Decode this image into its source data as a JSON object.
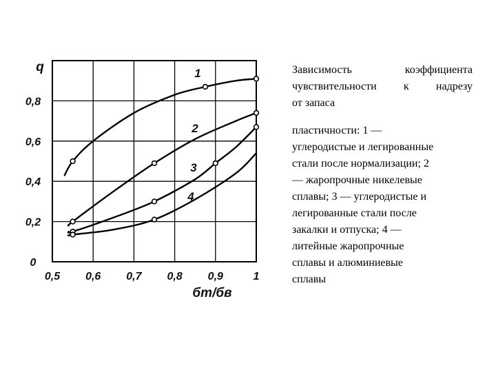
{
  "caption": {
    "part1": [
      "Зависимость   коэффициента",
      "чувствительности  к  надрезу",
      "от запаса"
    ],
    "part2": [
      "пластичности: 1 —",
      "углеродистые и легированные",
      "стали после нормализации; 2",
      "— жаропрочные никелевые",
      "сплавы; 3 — углеродистые и",
      "легированные стали после",
      "закалки и отпуска; 4 —",
      "литейные жаропрочные",
      "сплавы и алюминиевые",
      "сплавы"
    ]
  },
  "chart_data": {
    "type": "line",
    "title": "",
    "xlabel": "бт/бв",
    "ylabel": "q",
    "xlim": [
      0.5,
      1.0
    ],
    "ylim": [
      0,
      1.0
    ],
    "grid": true,
    "x_ticks": [
      0.5,
      0.6,
      0.7,
      0.8,
      0.9,
      1.0
    ],
    "x_tick_labels": [
      "0,5",
      "0,6",
      "0,7",
      "0,8",
      "0,9",
      "1"
    ],
    "y_ticks": [
      0,
      0.2,
      0.4,
      0.6,
      0.8
    ],
    "y_tick_labels": [
      "0",
      "0,2",
      "0,4",
      "0,6",
      "0,8"
    ],
    "series": [
      {
        "label": "1",
        "points": [
          [
            0.53,
            0.43
          ],
          [
            0.55,
            0.5
          ],
          [
            0.6,
            0.6
          ],
          [
            0.7,
            0.74
          ],
          [
            0.8,
            0.83
          ],
          [
            0.875,
            0.87
          ],
          [
            0.95,
            0.9
          ],
          [
            1.0,
            0.91
          ]
        ],
        "markers": [
          [
            0.55,
            0.5
          ],
          [
            0.875,
            0.87
          ],
          [
            1.0,
            0.91
          ]
        ]
      },
      {
        "label": "2",
        "points": [
          [
            0.54,
            0.18
          ],
          [
            0.55,
            0.2
          ],
          [
            0.65,
            0.35
          ],
          [
            0.75,
            0.49
          ],
          [
            0.85,
            0.61
          ],
          [
            0.95,
            0.7
          ],
          [
            1.0,
            0.74
          ]
        ],
        "markers": [
          [
            0.55,
            0.2
          ],
          [
            0.75,
            0.49
          ],
          [
            1.0,
            0.74
          ]
        ]
      },
      {
        "label": "3",
        "points": [
          [
            0.54,
            0.15
          ],
          [
            0.55,
            0.15
          ],
          [
            0.65,
            0.22
          ],
          [
            0.75,
            0.3
          ],
          [
            0.85,
            0.41
          ],
          [
            0.9,
            0.49
          ],
          [
            0.95,
            0.57
          ],
          [
            1.0,
            0.67
          ]
        ],
        "markers": [
          [
            0.55,
            0.15
          ],
          [
            0.75,
            0.3
          ],
          [
            0.9,
            0.49
          ],
          [
            1.0,
            0.67
          ]
        ]
      },
      {
        "label": "4",
        "points": [
          [
            0.54,
            0.13
          ],
          [
            0.55,
            0.135
          ],
          [
            0.65,
            0.16
          ],
          [
            0.75,
            0.21
          ],
          [
            0.85,
            0.31
          ],
          [
            0.95,
            0.44
          ],
          [
            1.0,
            0.54
          ]
        ],
        "markers": [
          [
            0.55,
            0.135
          ],
          [
            0.75,
            0.21
          ]
        ]
      }
    ]
  }
}
